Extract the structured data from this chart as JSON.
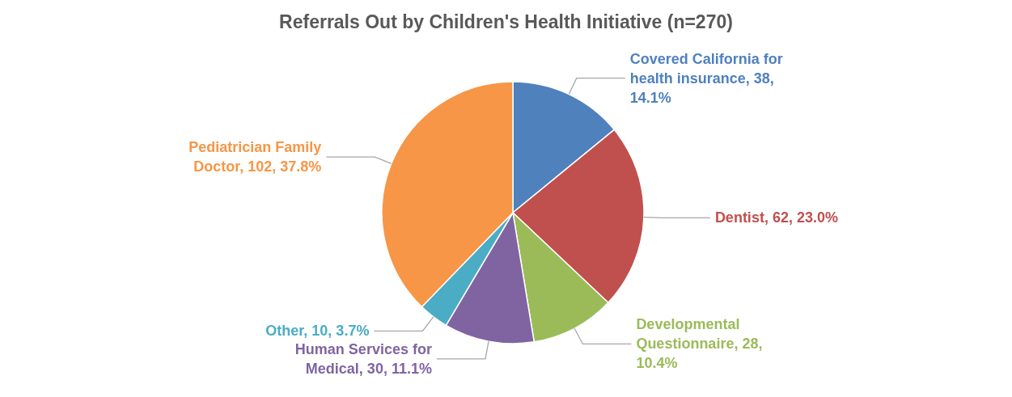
{
  "chart_data": {
    "type": "pie",
    "title": "Referrals Out by Children's Health Initiative (n=270)",
    "categories": [
      "Covered California for health insurance",
      "Dentist",
      "Developmental Questionnaire",
      "Human Services for Medical",
      "Other",
      "Pediatrician Family Doctor"
    ],
    "values": [
      38,
      62,
      28,
      30,
      10,
      102
    ],
    "colors": [
      "#4f81bd",
      "#c0504d",
      "#9bbb59",
      "#8064a2",
      "#4bacc6",
      "#f79646"
    ],
    "value_labels": [
      "38, 14.1%",
      "62, 23.0%",
      "28, 10.4%",
      "30, 11.1%",
      "10, 3.7%",
      "102, 37.8%"
    ],
    "legend": false
  }
}
